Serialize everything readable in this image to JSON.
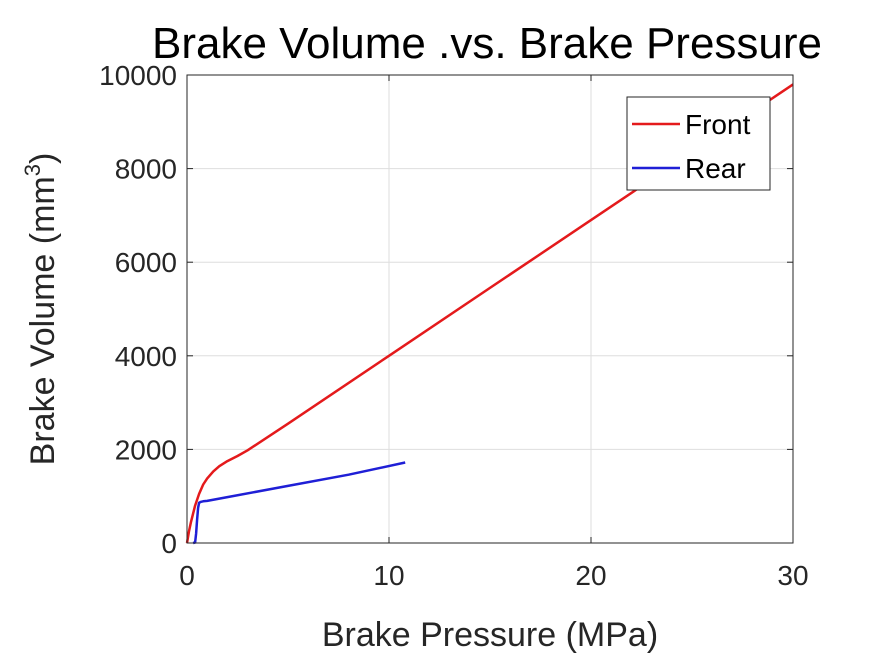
{
  "chart_data": {
    "type": "line",
    "title": "Brake Volume .vs. Brake Pressure",
    "xlabel": "Brake Pressure (MPa)",
    "ylabel_main": "Brake Volume (mm",
    "ylabel_sup": "3",
    "ylabel_close": ")",
    "xlim": [
      0,
      30
    ],
    "ylim": [
      0,
      10000
    ],
    "xticks": [
      "0",
      "10",
      "20",
      "30"
    ],
    "yticks": [
      "0",
      "2000",
      "4000",
      "6000",
      "8000",
      "10000"
    ],
    "grid": true,
    "legend_position": "top-right",
    "series": [
      {
        "name": "Front",
        "color": "#e41a1c",
        "x": [
          0,
          0.1,
          0.2,
          0.4,
          0.6,
          0.8,
          1.0,
          1.3,
          1.6,
          2.0,
          2.5,
          3.0,
          5,
          10,
          15,
          20,
          25,
          30
        ],
        "y": [
          0,
          250,
          450,
          800,
          1050,
          1250,
          1380,
          1530,
          1640,
          1750,
          1860,
          1980,
          2550,
          4000,
          5450,
          6900,
          8350,
          9800
        ]
      },
      {
        "name": "Rear",
        "color": "#1f1fd6",
        "x": [
          0.3,
          0.4,
          0.45,
          0.5,
          0.55,
          0.6,
          0.7,
          0.8,
          1.0,
          2.0,
          5.0,
          8.0,
          10.8
        ],
        "y": [
          0,
          10,
          200,
          500,
          750,
          860,
          880,
          890,
          900,
          980,
          1220,
          1460,
          1720
        ]
      }
    ]
  }
}
